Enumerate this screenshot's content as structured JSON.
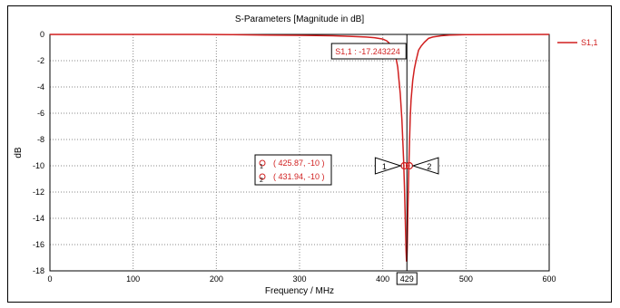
{
  "chart_data": {
    "type": "line",
    "title": "S-Parameters [Magnitude in dB]",
    "xlabel": "Frequency / MHz",
    "ylabel": "dB",
    "xlim": [
      0,
      600
    ],
    "ylim": [
      -18,
      0
    ],
    "xticks": [
      0,
      100,
      200,
      300,
      400,
      500,
      600
    ],
    "yticks": [
      0,
      -2,
      -4,
      -6,
      -8,
      -10,
      -12,
      -14,
      -16,
      -18
    ],
    "grid": true,
    "legend_position": "right",
    "series": [
      {
        "name": "S1,1",
        "color": "#d01f1f",
        "x": [
          0,
          100,
          180,
          220,
          260,
          300,
          340,
          360,
          380,
          390,
          400,
          405,
          410,
          415,
          418,
          421,
          423,
          425,
          426,
          427,
          428,
          428.5,
          429,
          429.5,
          430,
          431,
          432,
          433,
          434,
          436,
          438,
          440,
          443,
          446,
          450,
          455,
          460,
          470,
          480,
          500,
          600
        ],
        "y": [
          0,
          0,
          0,
          -0.02,
          -0.05,
          -0.07,
          -0.1,
          -0.15,
          -0.2,
          -0.25,
          -0.35,
          -0.5,
          -0.8,
          -1.5,
          -2.5,
          -4.5,
          -6.5,
          -9.5,
          -11.5,
          -14,
          -16.5,
          -17.24,
          -17.24,
          -16,
          -14,
          -11,
          -8.5,
          -6.3,
          -5,
          -3.5,
          -2.6,
          -2,
          -1.2,
          -0.9,
          -0.6,
          -0.3,
          -0.2,
          -0.1,
          -0.05,
          -0.02,
          0
        ]
      }
    ],
    "marker_readout": "S1,1 : -17.243224",
    "marker_frequency": "429",
    "points": [
      {
        "id": "1",
        "label": "( 425.87, -10 )",
        "x": 425.87,
        "y": -10
      },
      {
        "id": "2",
        "label": "( 431.94, -10 )",
        "x": 431.94,
        "y": -10
      }
    ]
  }
}
